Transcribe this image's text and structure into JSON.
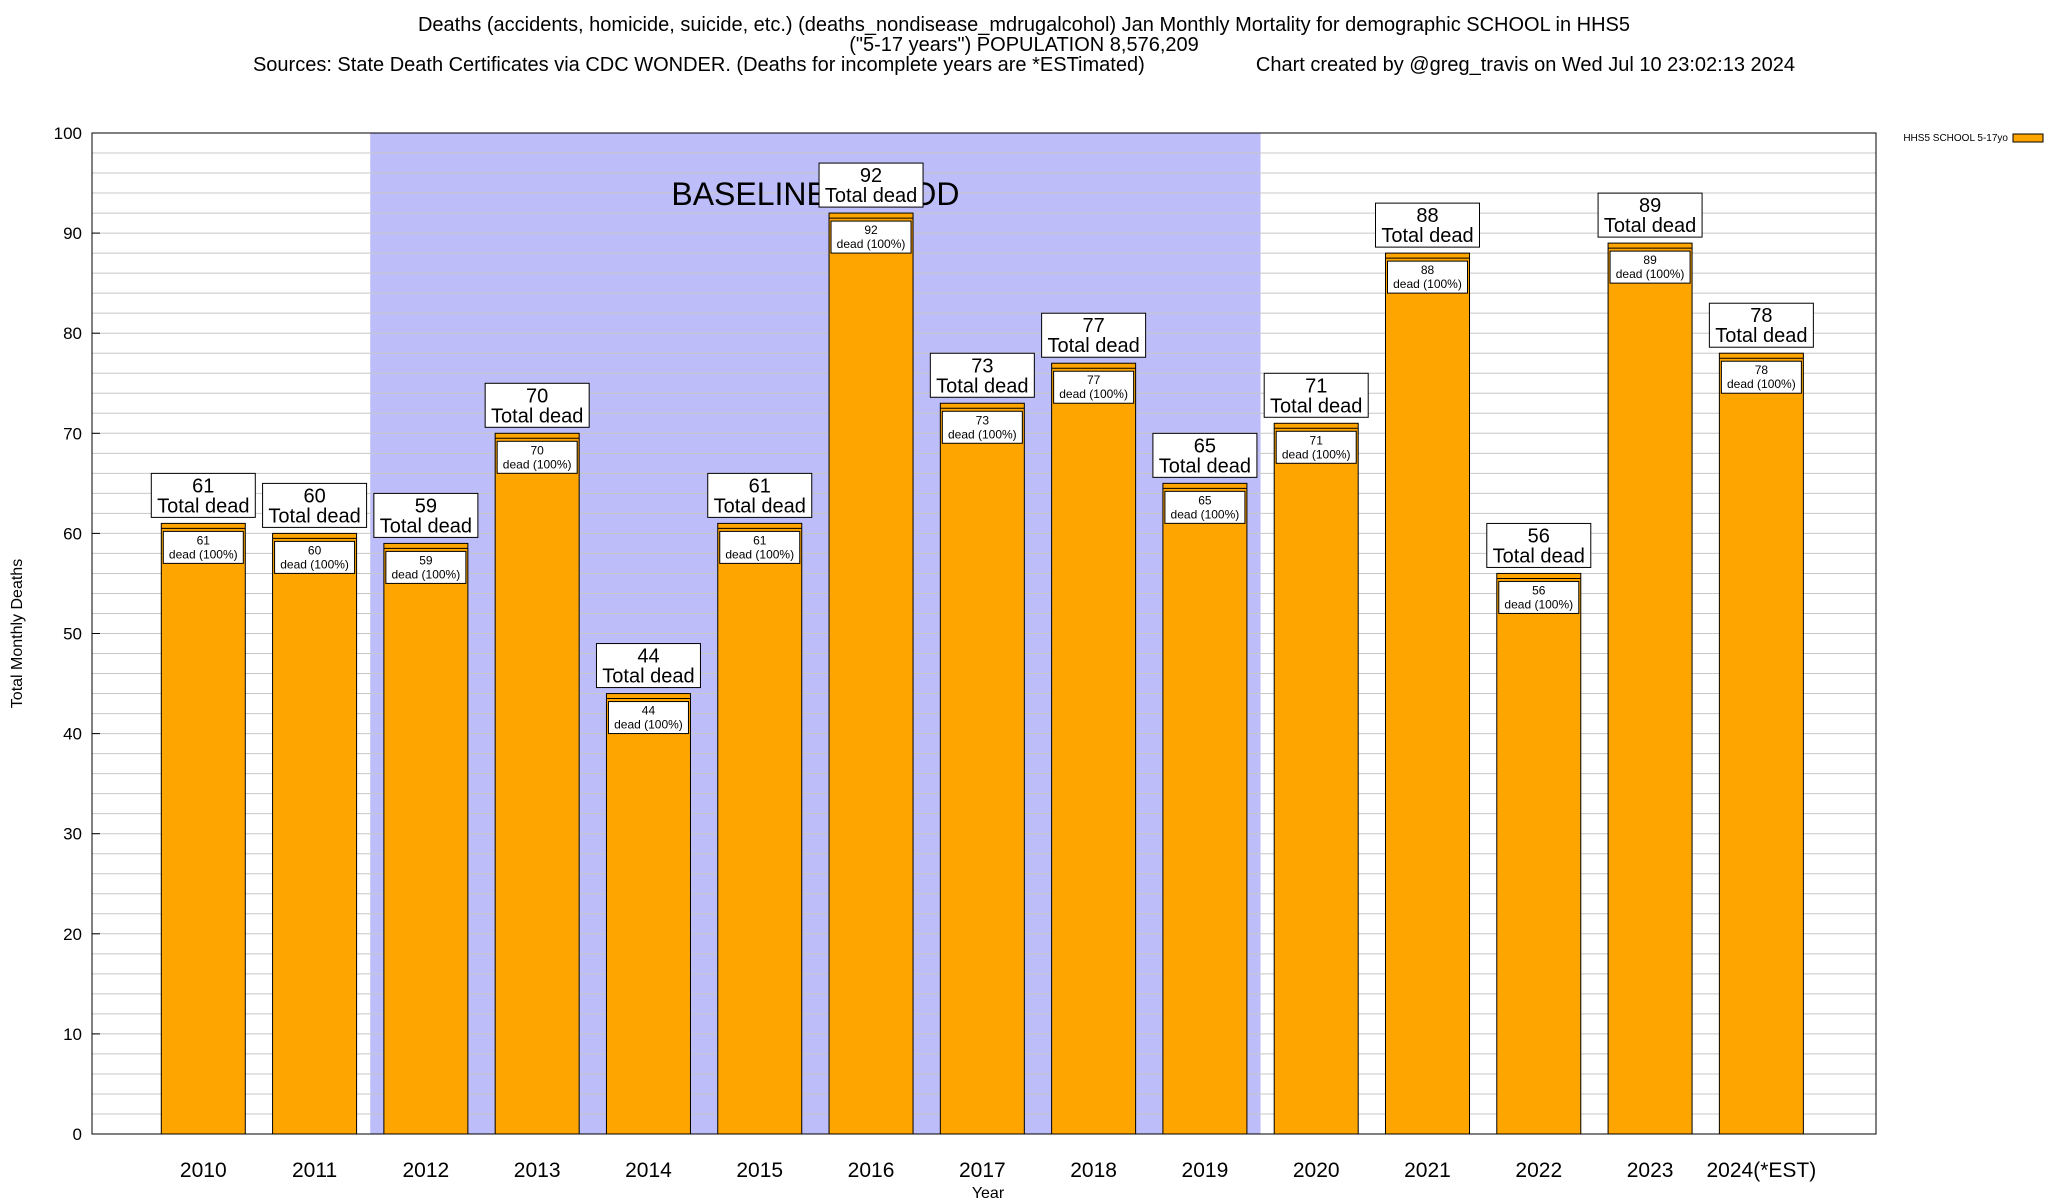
{
  "header": {
    "title_line1": "Deaths (accidents, homicide, suicide, etc.) (deaths_nondisease_mdrugalcohol) Jan Monthly Mortality for demographic SCHOOL in HHS5",
    "title_line2": "(\"5-17 years\") POPULATION 8,576,209",
    "title_line3": "Sources: State Death Certificates via CDC WONDER. (Deaths for incomplete years are *ESTimated)                    Chart created by @greg_travis on Wed Jul 10 23:02:13 2024"
  },
  "chart_data": {
    "type": "bar",
    "categories": [
      "2010",
      "2011",
      "2012",
      "2013",
      "2014",
      "2015",
      "2016",
      "2017",
      "2018",
      "2019",
      "2020",
      "2021",
      "2022",
      "2023",
      "2024(*EST)"
    ],
    "series": [
      {
        "name": "HHS5 SCHOOL 5-17yo",
        "values": [
          61,
          60,
          59,
          70,
          44,
          61,
          92,
          73,
          77,
          65,
          71,
          88,
          56,
          89,
          78
        ]
      }
    ],
    "xlabel": "Year",
    "ylabel": "Total Monthly Deaths",
    "ylim": [
      0,
      100
    ],
    "yticks": [
      0,
      10,
      20,
      30,
      40,
      50,
      60,
      70,
      80,
      90,
      100
    ],
    "grid": true,
    "legend": "top-right",
    "total_label": "Total dead",
    "inner_label_suffix": "dead (100%)",
    "baseline": {
      "label": "BASELINE PERIOD",
      "start": "2012",
      "end": "2019"
    },
    "colors": {
      "bar": "#ffa500",
      "bar_stroke": "#000000",
      "baseline": "#bdbdf9",
      "grid": "#c8c8c8"
    }
  }
}
